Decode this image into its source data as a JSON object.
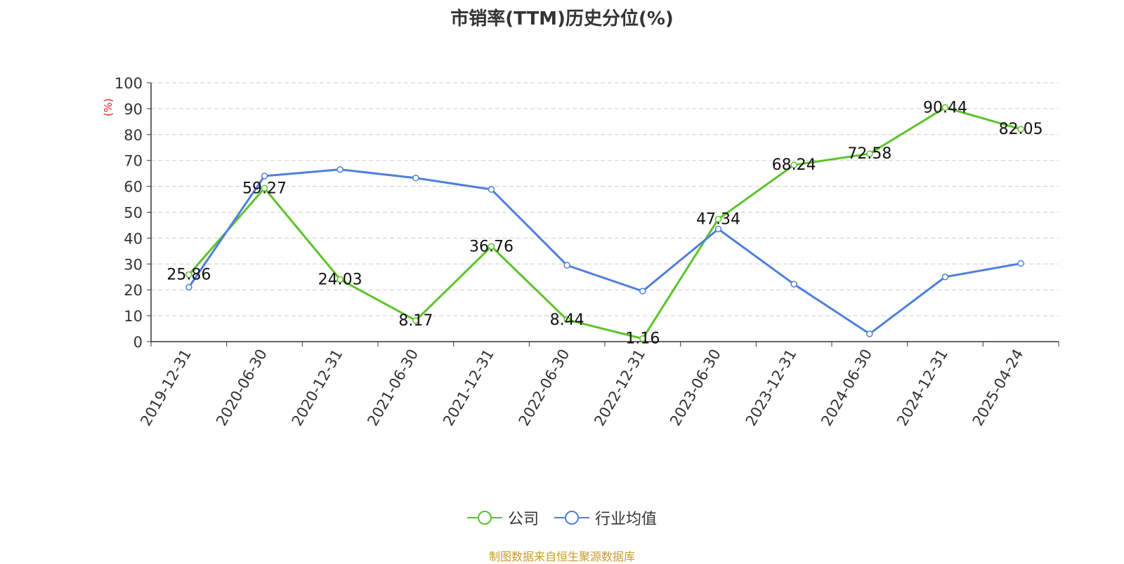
{
  "title": "市销率(TTM)历史分位(%)",
  "ylabel": "(%)",
  "legend": {
    "company": "公司",
    "industry": "行业均值"
  },
  "source": "制图数据来自恒生聚源数据库",
  "colors": {
    "company": "#5cc32a",
    "industry": "#4f7fdd",
    "ylabel": "#e02020",
    "grid": "#cccccc",
    "axis": "#333333",
    "text": "#333333",
    "source": "#c99a2e"
  },
  "chart_data": {
    "type": "line",
    "title": "市销率(TTM)历史分位(%)",
    "ylabel": "(%)",
    "xlabel": "",
    "ylim": [
      0,
      100
    ],
    "yticks": [
      0,
      10,
      20,
      30,
      40,
      50,
      60,
      70,
      80,
      90,
      100
    ],
    "grid": "horizontal dashed",
    "legend_position": "bottom-center",
    "categories": [
      "2019-12-31",
      "2020-06-30",
      "2020-12-31",
      "2021-06-30",
      "2021-12-31",
      "2022-06-30",
      "2022-12-31",
      "2023-06-30",
      "2023-12-31",
      "2024-06-30",
      "2024-12-31",
      "2025-04-24"
    ],
    "series": [
      {
        "name": "公司",
        "values": [
          25.86,
          59.27,
          24.03,
          8.17,
          36.76,
          8.44,
          1.16,
          47.34,
          68.24,
          72.58,
          90.44,
          82.05
        ],
        "labels": [
          "25.86",
          "59.27",
          "24.03",
          "8.17",
          "36.76",
          "8.44",
          "1.16",
          "47.34",
          "68.24",
          "72.58",
          "90.44",
          "82.05"
        ]
      },
      {
        "name": "行业均值",
        "values": [
          21,
          64,
          66.5,
          63.2,
          58.8,
          29.5,
          19.5,
          43.5,
          22.2,
          3,
          25,
          30.2
        ]
      }
    ]
  }
}
